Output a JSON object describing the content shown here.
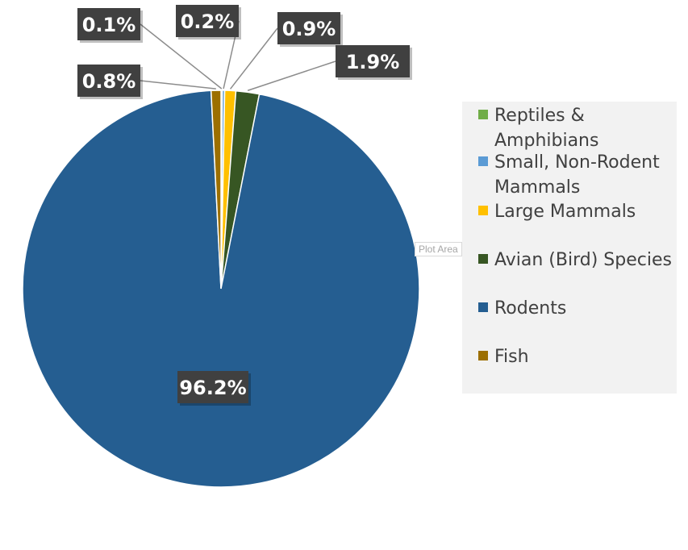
{
  "chart_data": {
    "type": "pie",
    "title": "",
    "slices": [
      {
        "name": "Reptiles & Amphibians",
        "value": 0.1,
        "label": "0.1%",
        "color": "#70ad47"
      },
      {
        "name": "Small, Non-Rodent Mammals",
        "value": 0.2,
        "label": "0.2%",
        "color": "#5b9bd5"
      },
      {
        "name": "Large Mammals",
        "value": 0.9,
        "label": "0.9%",
        "color": "#ffc000"
      },
      {
        "name": "Avian (Bird) Species",
        "value": 1.9,
        "label": "1.9%",
        "color": "#375623"
      },
      {
        "name": "Rodents",
        "value": 96.2,
        "label": "96.2%",
        "color": "#255e91"
      },
      {
        "name": "Fish",
        "value": 0.8,
        "label": "0.8%",
        "color": "#9c6f00"
      }
    ],
    "legend_position": "right",
    "data_label_style": {
      "background": "#404040",
      "text_color": "#ffffff"
    },
    "leader_line_color": "#8c8c8c"
  },
  "legend": {
    "items": [
      {
        "label": "Reptiles &\nAmphibians",
        "color": "#70ad47"
      },
      {
        "label": "Small, Non-Rodent Mammals",
        "color": "#5b9bd5"
      },
      {
        "label": "Large Mammals",
        "color": "#ffc000"
      },
      {
        "label": "Avian (Bird) Species",
        "color": "#375623"
      },
      {
        "label": "Rodents",
        "color": "#255e91"
      },
      {
        "label": "Fish",
        "color": "#9c6f00"
      }
    ]
  },
  "tooltip": {
    "text": "Plot Area"
  }
}
